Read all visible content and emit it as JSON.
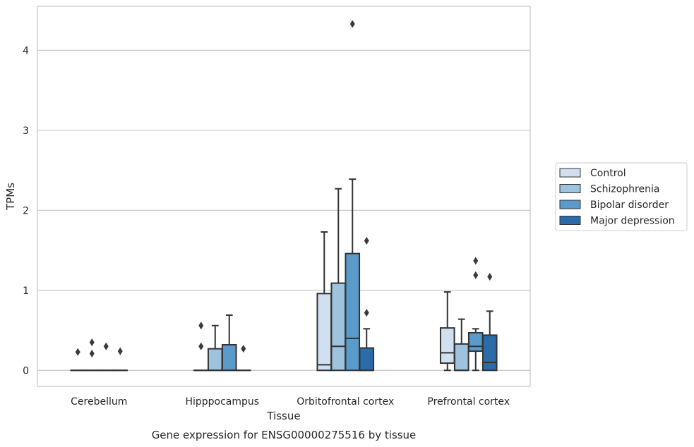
{
  "chart_data": {
    "type": "box",
    "title": "Gene expression for ENSG00000275516 by tissue",
    "xlabel": "Tissue",
    "ylabel": "TPMs",
    "ylim": [
      -0.2,
      4.55
    ],
    "yticks": [
      0,
      1,
      2,
      3,
      4
    ],
    "grid": true,
    "legend_position": "right",
    "categories": [
      "Cerebellum",
      "Hipppocampus",
      "Orbitofrontal cortex",
      "Prefrontal cortex"
    ],
    "series": [
      {
        "name": "Control",
        "color": "#d0e0f0",
        "boxes": [
          {
            "whisker_low": 0,
            "q1": 0,
            "median": 0,
            "q3": 0,
            "whisker_high": 0,
            "outliers": [
              0.23
            ]
          },
          {
            "whisker_low": 0,
            "q1": 0,
            "median": 0,
            "q3": 0,
            "whisker_high": 0,
            "outliers": [
              0.56,
              0.3
            ]
          },
          {
            "whisker_low": 0,
            "q1": 0,
            "median": 0.07,
            "q3": 0.96,
            "whisker_high": 1.73,
            "outliers": []
          },
          {
            "whisker_low": 0,
            "q1": 0.09,
            "median": 0.22,
            "q3": 0.53,
            "whisker_high": 0.98,
            "outliers": []
          }
        ]
      },
      {
        "name": "Schizophrenia",
        "color": "#9dc3de",
        "boxes": [
          {
            "whisker_low": 0,
            "q1": 0,
            "median": 0,
            "q3": 0,
            "whisker_high": 0,
            "outliers": [
              0.35,
              0.21
            ]
          },
          {
            "whisker_low": 0,
            "q1": 0,
            "median": 0,
            "q3": 0.27,
            "whisker_high": 0.56,
            "outliers": []
          },
          {
            "whisker_low": 0,
            "q1": 0,
            "median": 0.3,
            "q3": 1.09,
            "whisker_high": 2.27,
            "outliers": []
          },
          {
            "whisker_low": 0,
            "q1": 0,
            "median": 0,
            "q3": 0.33,
            "whisker_high": 0.64,
            "outliers": []
          }
        ]
      },
      {
        "name": "Bipolar disorder",
        "color": "#5b9bcb",
        "boxes": [
          {
            "whisker_low": 0,
            "q1": 0,
            "median": 0,
            "q3": 0,
            "whisker_high": 0,
            "outliers": [
              0.3
            ]
          },
          {
            "whisker_low": 0,
            "q1": 0,
            "median": 0,
            "q3": 0.32,
            "whisker_high": 0.69,
            "outliers": []
          },
          {
            "whisker_low": 0,
            "q1": 0,
            "median": 0.4,
            "q3": 1.46,
            "whisker_high": 2.39,
            "outliers": [
              4.33
            ]
          },
          {
            "whisker_low": 0,
            "q1": 0.24,
            "median": 0.3,
            "q3": 0.47,
            "whisker_high": 0.52,
            "outliers": [
              1.37,
              1.19
            ]
          }
        ]
      },
      {
        "name": "Major depression",
        "color": "#2b6ba8",
        "boxes": [
          {
            "whisker_low": 0,
            "q1": 0,
            "median": 0,
            "q3": 0,
            "whisker_high": 0,
            "outliers": [
              0.24
            ]
          },
          {
            "whisker_low": 0,
            "q1": 0,
            "median": 0,
            "q3": 0,
            "whisker_high": 0,
            "outliers": [
              0.27
            ]
          },
          {
            "whisker_low": 0,
            "q1": 0,
            "median": 0,
            "q3": 0.28,
            "whisker_high": 0.52,
            "outliers": [
              1.62,
              0.72
            ]
          },
          {
            "whisker_low": 0,
            "q1": 0,
            "median": 0.1,
            "q3": 0.44,
            "whisker_high": 0.74,
            "outliers": [
              1.17
            ]
          }
        ]
      }
    ]
  }
}
